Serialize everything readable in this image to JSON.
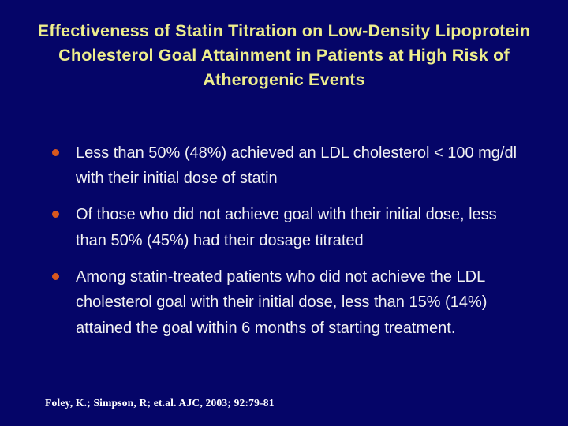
{
  "slide": {
    "title": "Effectiveness of Statin Titration on Low-Density Lipoprotein Cholesterol Goal Attainment in Patients at High Risk of Atherogenic Events",
    "bullets": [
      "Less than 50% (48%) achieved an LDL cholesterol < 100 mg/dl with their initial dose of statin",
      "Of those who did not achieve goal with their initial dose, less than 50% (45%) had their dosage titrated",
      "Among statin-treated patients who did not achieve the LDL cholesterol goal with their initial dose, less than 15% (14%) attained the goal within 6 months of starting treatment."
    ],
    "citation": "Foley, K.; Simpson, R; et.al. AJC, 2003; 92:79-81",
    "colors": {
      "background": "#050568",
      "title": "#EDED8C",
      "body_text": "#F2F2F2",
      "bullet_marker": "#D9581E"
    }
  }
}
